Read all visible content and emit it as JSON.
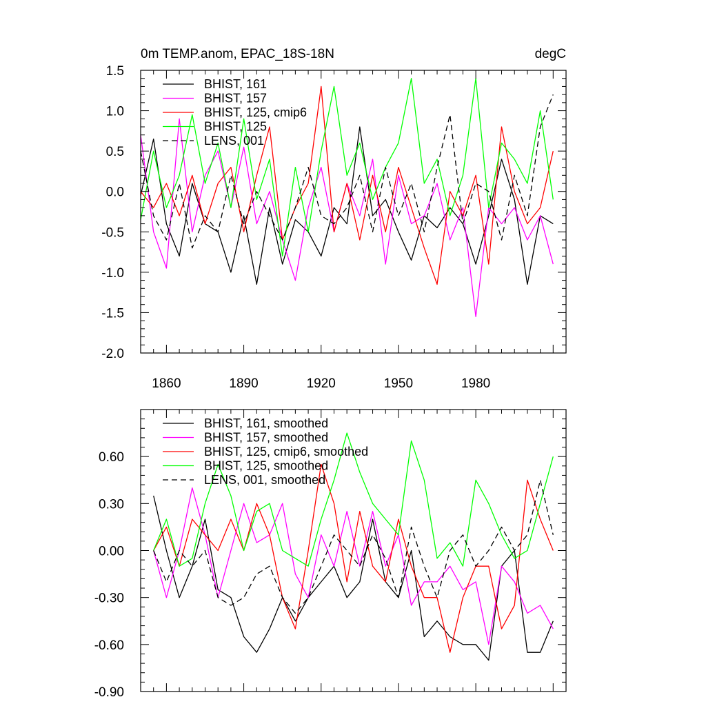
{
  "chart_data": [
    {
      "type": "line",
      "title": "0m TEMP.anom, EPAC_18S-18N",
      "units": "degC",
      "xlim": [
        1850,
        2015
      ],
      "ylim": [
        -2.0,
        1.5
      ],
      "xticks": [
        1860,
        1890,
        1920,
        1950,
        1980
      ],
      "xtick_labels": [
        "1860",
        "1890",
        "1920",
        "1950",
        "1980"
      ],
      "yticks": [
        -2.0,
        -1.5,
        -1.0,
        -0.5,
        0.0,
        0.5,
        1.0,
        1.5
      ],
      "ytick_labels": [
        "-2.0",
        "-1.5",
        "-1.0",
        "-0.5",
        "0.0",
        "0.5",
        "1.0",
        "1.5"
      ],
      "legend_position": "top-left",
      "series": [
        {
          "name": "BHIST, 161",
          "color": "#000000",
          "dash": "solid",
          "x": [
            1850,
            1855,
            1860,
            1865,
            1870,
            1875,
            1880,
            1885,
            1890,
            1895,
            1900,
            1905,
            1910,
            1915,
            1920,
            1925,
            1930,
            1935,
            1940,
            1945,
            1950,
            1955,
            1960,
            1965,
            1970,
            1975,
            1980,
            1985,
            1990,
            1995,
            2000,
            2005,
            2010
          ],
          "y": [
            -0.05,
            0.65,
            -0.4,
            -0.8,
            0.1,
            -0.4,
            -0.5,
            -1.0,
            -0.3,
            -1.15,
            -0.2,
            -0.9,
            -0.35,
            -0.5,
            -0.8,
            -0.2,
            -0.4,
            0.8,
            -0.3,
            -0.1,
            -0.5,
            -0.85,
            -0.3,
            -0.45,
            -0.2,
            -0.4,
            -0.9,
            -0.3,
            0.4,
            -0.1,
            -1.15,
            -0.3,
            -0.4
          ]
        },
        {
          "name": "BHIST, 157",
          "color": "#ff00ff",
          "dash": "solid",
          "x": [
            1850,
            1855,
            1860,
            1865,
            1870,
            1875,
            1880,
            1885,
            1890,
            1895,
            1900,
            1905,
            1910,
            1915,
            1920,
            1925,
            1930,
            1935,
            1940,
            1945,
            1950,
            1955,
            1960,
            1965,
            1970,
            1975,
            1980,
            1985,
            1990,
            1995,
            2000,
            2005,
            2010
          ],
          "y": [
            0.7,
            -0.5,
            -0.95,
            0.9,
            -0.5,
            0.2,
            0.5,
            -0.2,
            0.55,
            -0.4,
            0.0,
            -0.6,
            -1.1,
            -0.2,
            0.3,
            -0.5,
            0.1,
            -0.3,
            0.4,
            -0.9,
            0.2,
            -0.4,
            -0.3,
            0.1,
            -0.6,
            -0.2,
            -1.55,
            -0.2,
            -0.4,
            -0.2,
            -0.6,
            -0.3,
            -0.9
          ]
        },
        {
          "name": "BHIST, 125, cmip6",
          "color": "#ff0000",
          "dash": "solid",
          "x": [
            1850,
            1855,
            1860,
            1865,
            1870,
            1875,
            1880,
            1885,
            1890,
            1895,
            1900,
            1905,
            1910,
            1915,
            1920,
            1925,
            1930,
            1935,
            1940,
            1945,
            1950,
            1955,
            1960,
            1965,
            1970,
            1975,
            1980,
            1985,
            1990,
            1995,
            2000,
            2005,
            2010
          ],
          "y": [
            0.0,
            -0.2,
            0.1,
            -0.3,
            0.2,
            -0.4,
            0.1,
            0.3,
            -0.5,
            0.2,
            0.8,
            -0.6,
            -0.2,
            0.1,
            1.3,
            -0.5,
            0.1,
            -0.6,
            0.2,
            -0.5,
            0.3,
            -0.2,
            -0.7,
            -1.15,
            0.0,
            -0.3,
            0.2,
            -0.9,
            0.8,
            0.0,
            -0.4,
            -0.2,
            0.5
          ]
        },
        {
          "name": "BHIST, 125",
          "color": "#00ff00",
          "dash": "solid",
          "x": [
            1850,
            1855,
            1860,
            1865,
            1870,
            1875,
            1880,
            1885,
            1890,
            1895,
            1900,
            1905,
            1910,
            1915,
            1920,
            1925,
            1930,
            1935,
            1940,
            1945,
            1950,
            1955,
            1960,
            1965,
            1970,
            1975,
            1980,
            1985,
            1990,
            1995,
            2000,
            2005,
            2010
          ],
          "y": [
            -0.35,
            0.5,
            -0.2,
            0.2,
            0.95,
            0.1,
            0.6,
            -0.2,
            0.9,
            -0.1,
            0.4,
            -0.8,
            0.3,
            -0.5,
            0.5,
            1.3,
            0.2,
            0.6,
            -0.1,
            0.3,
            0.6,
            1.4,
            0.1,
            0.4,
            -0.3,
            0.2,
            1.4,
            -0.2,
            0.6,
            0.4,
            0.1,
            1.0,
            -0.1
          ]
        },
        {
          "name": "LENS, 001",
          "color": "#000000",
          "dash": "dashed",
          "x": [
            1850,
            1855,
            1860,
            1865,
            1870,
            1875,
            1880,
            1885,
            1890,
            1895,
            1900,
            1905,
            1910,
            1915,
            1920,
            1925,
            1930,
            1935,
            1940,
            1945,
            1950,
            1955,
            1960,
            1965,
            1970,
            1975,
            1980,
            1985,
            1990,
            1995,
            2000,
            2005,
            2010
          ],
          "y": [
            0.5,
            -0.3,
            -0.6,
            0.1,
            -0.7,
            -0.3,
            -0.5,
            0.2,
            -0.4,
            0.0,
            -0.3,
            -0.6,
            -0.2,
            0.3,
            -0.3,
            -0.4,
            -0.2,
            0.2,
            -0.5,
            0.3,
            -0.3,
            0.1,
            -0.5,
            0.3,
            0.95,
            -0.4,
            0.1,
            0.0,
            -0.6,
            0.2,
            -0.3,
            0.8,
            1.2
          ]
        }
      ]
    },
    {
      "type": "line",
      "xlim": [
        1850,
        2015
      ],
      "ylim": [
        -0.9,
        0.9
      ],
      "yticks": [
        -0.9,
        -0.6,
        -0.3,
        0.0,
        0.3,
        0.6
      ],
      "ytick_labels": [
        "-0.90",
        "-0.60",
        "-0.30",
        "0.00",
        "0.30",
        "0.60"
      ],
      "legend_position": "top-left",
      "series": [
        {
          "name": "BHIST, 161, smoothed",
          "color": "#000000",
          "dash": "solid",
          "x": [
            1855,
            1860,
            1865,
            1870,
            1875,
            1880,
            1885,
            1890,
            1895,
            1900,
            1905,
            1910,
            1915,
            1920,
            1925,
            1930,
            1935,
            1940,
            1945,
            1950,
            1955,
            1960,
            1965,
            1970,
            1975,
            1980,
            1985,
            1990,
            1995,
            2000,
            2005,
            2010
          ],
          "y": [
            0.35,
            0.0,
            -0.3,
            -0.1,
            0.2,
            -0.25,
            -0.3,
            -0.55,
            -0.65,
            -0.5,
            -0.3,
            -0.45,
            -0.3,
            -0.2,
            -0.1,
            -0.3,
            -0.2,
            0.2,
            -0.2,
            -0.3,
            0.0,
            -0.55,
            -0.45,
            -0.55,
            -0.6,
            -0.6,
            -0.7,
            -0.1,
            0.0,
            -0.65,
            -0.65,
            -0.45
          ]
        },
        {
          "name": "BHIST, 157, smoothed",
          "color": "#ff00ff",
          "dash": "solid",
          "x": [
            1855,
            1860,
            1865,
            1870,
            1875,
            1880,
            1885,
            1890,
            1895,
            1900,
            1905,
            1910,
            1915,
            1920,
            1925,
            1930,
            1935,
            1940,
            1945,
            1950,
            1955,
            1960,
            1965,
            1970,
            1975,
            1980,
            1985,
            1990,
            1995,
            2000,
            2005,
            2010
          ],
          "y": [
            0.0,
            -0.3,
            0.0,
            0.4,
            0.1,
            -0.3,
            0.0,
            0.3,
            0.05,
            0.1,
            0.3,
            -0.15,
            -0.3,
            0.1,
            -0.1,
            0.25,
            -0.1,
            0.25,
            -0.1,
            0.1,
            -0.35,
            -0.2,
            -0.2,
            -0.1,
            -0.25,
            -0.2,
            -0.6,
            -0.1,
            -0.2,
            -0.4,
            -0.35,
            -0.5
          ]
        },
        {
          "name": "BHIST, 125, cmip6, smoothed",
          "color": "#ff0000",
          "dash": "solid",
          "x": [
            1855,
            1860,
            1865,
            1870,
            1875,
            1880,
            1885,
            1890,
            1895,
            1900,
            1905,
            1910,
            1915,
            1920,
            1925,
            1930,
            1935,
            1940,
            1945,
            1950,
            1955,
            1960,
            1965,
            1970,
            1975,
            1980,
            1985,
            1990,
            1995,
            2000,
            2005,
            2010
          ],
          "y": [
            0.0,
            0.15,
            -0.1,
            0.2,
            0.1,
            0.0,
            0.2,
            0.0,
            0.3,
            0.1,
            -0.3,
            -0.5,
            0.0,
            0.55,
            0.3,
            -0.2,
            0.25,
            -0.1,
            -0.2,
            0.2,
            -0.1,
            -0.3,
            -0.3,
            -0.65,
            -0.3,
            -0.1,
            -0.1,
            -0.5,
            -0.35,
            0.45,
            0.2,
            0.0
          ]
        },
        {
          "name": "BHIST, 125, smoothed",
          "color": "#00ff00",
          "dash": "solid",
          "x": [
            1855,
            1860,
            1865,
            1870,
            1875,
            1880,
            1885,
            1890,
            1895,
            1900,
            1905,
            1910,
            1915,
            1920,
            1925,
            1930,
            1935,
            1940,
            1945,
            1950,
            1955,
            1960,
            1965,
            1970,
            1975,
            1980,
            1985,
            1990,
            1995,
            2000,
            2005,
            2010
          ],
          "y": [
            0.0,
            0.2,
            -0.1,
            -0.05,
            0.3,
            0.55,
            0.35,
            0.0,
            0.25,
            0.3,
            0.0,
            -0.05,
            -0.1,
            0.2,
            0.45,
            0.75,
            0.5,
            0.3,
            0.2,
            0.1,
            0.7,
            0.45,
            -0.05,
            0.05,
            -0.1,
            0.45,
            0.3,
            0.1,
            -0.05,
            0.0,
            0.3,
            0.6
          ]
        },
        {
          "name": "LENS, 001, smoothed",
          "color": "#000000",
          "dash": "dashed",
          "x": [
            1855,
            1860,
            1865,
            1870,
            1875,
            1880,
            1885,
            1890,
            1895,
            1900,
            1905,
            1910,
            1915,
            1920,
            1925,
            1930,
            1935,
            1940,
            1945,
            1950,
            1955,
            1960,
            1965,
            1970,
            1975,
            1980,
            1985,
            1990,
            1995,
            2000,
            2005,
            2010
          ],
          "y": [
            0.0,
            -0.2,
            0.0,
            -0.1,
            0.0,
            -0.3,
            -0.35,
            -0.3,
            -0.15,
            -0.1,
            -0.3,
            -0.4,
            -0.3,
            -0.1,
            0.1,
            0.0,
            -0.1,
            0.1,
            -0.05,
            -0.3,
            0.15,
            -0.1,
            -0.3,
            0.0,
            0.1,
            -0.1,
            0.0,
            0.15,
            0.0,
            0.1,
            0.45,
            0.1
          ]
        }
      ]
    }
  ]
}
